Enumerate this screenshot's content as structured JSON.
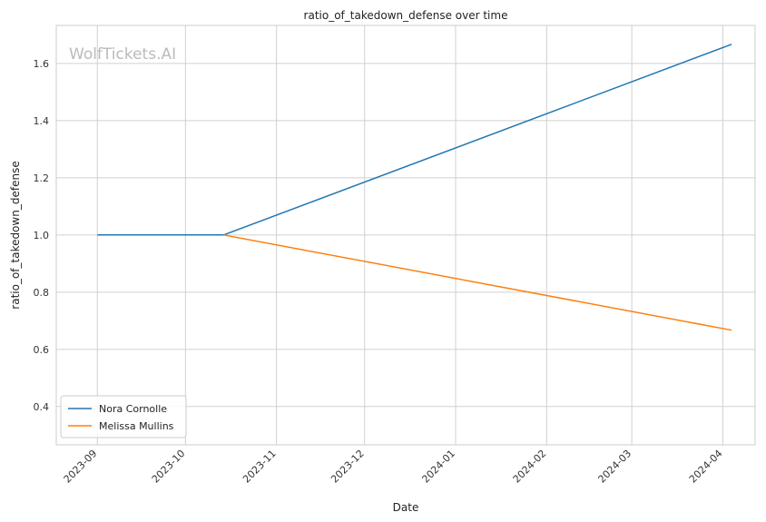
{
  "chart_data": {
    "type": "line",
    "title": "ratio_of_takedown_defense over time",
    "xlabel": "Date",
    "ylabel": "ratio_of_takedown_defense",
    "watermark": "WolfTickets.AI",
    "x_ticks": [
      "2023-09",
      "2023-10",
      "2023-11",
      "2023-12",
      "2024-01",
      "2024-02",
      "2024-03",
      "2024-04"
    ],
    "y_ticks": [
      "0.4",
      "0.6",
      "0.8",
      "1.0",
      "1.2",
      "1.4",
      "1.6"
    ],
    "xlim": [
      "2023-08-18",
      "2024-04-12"
    ],
    "ylim": [
      0.266,
      1.733
    ],
    "grid": true,
    "legend_position": "lower-left",
    "series": [
      {
        "name": "Nora Cornolle",
        "color": "#1f77b4",
        "x": [
          "2023-09-01",
          "2023-10-14",
          "2024-04-04"
        ],
        "y": [
          1.0,
          1.0,
          1.667
        ]
      },
      {
        "name": "Melissa Mullins",
        "color": "#ff7f0e",
        "x": [
          "2023-10-14",
          "2024-04-04"
        ],
        "y": [
          1.0,
          0.667
        ]
      }
    ]
  }
}
